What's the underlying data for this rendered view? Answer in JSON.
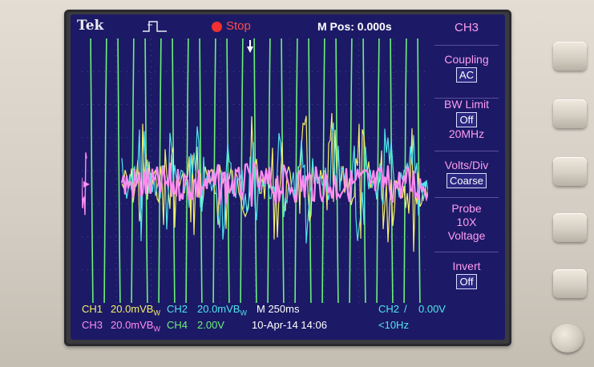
{
  "header": {
    "brand": "Tek",
    "run_state": "Stop",
    "position": "M Pos: 0.000s",
    "trigger_icon": "pulse-icon"
  },
  "menu": {
    "channel": "CH3",
    "coupling_label": "Coupling",
    "coupling_value": "AC",
    "bw_label": "BW Limit",
    "bw_value": "Off",
    "bw_freq": "20MHz",
    "volts_label": "Volts/Div",
    "volts_value": "Coarse",
    "probe_label": "Probe",
    "probe_atten": "10X",
    "probe_type": "Voltage",
    "invert_label": "Invert",
    "invert_value": "Off"
  },
  "status": {
    "ch1": "CH1",
    "ch1_scale": "20.0mVB",
    "ch1_bw": "W",
    "ch2": "CH2",
    "ch2_scale": "20.0mVB",
    "ch2_bw": "W",
    "timebase": "M 250ms",
    "trigger_source": "CH2",
    "trigger_slope": "/",
    "trigger_level": "0.00V",
    "ch3": "CH3",
    "ch3_scale": "20.0mVB",
    "ch3_bw": "W",
    "ch4": "CH4",
    "ch4_scale": "2.00V",
    "date_time": "10-Apr-14 14:06",
    "trigger_freq": "<10Hz"
  },
  "colors": {
    "ch1": "#f4ef6a",
    "ch2": "#4fe4ec",
    "ch3": "#ff8cf2",
    "ch4": "#6cf07a",
    "screen": "#1c1a66"
  }
}
